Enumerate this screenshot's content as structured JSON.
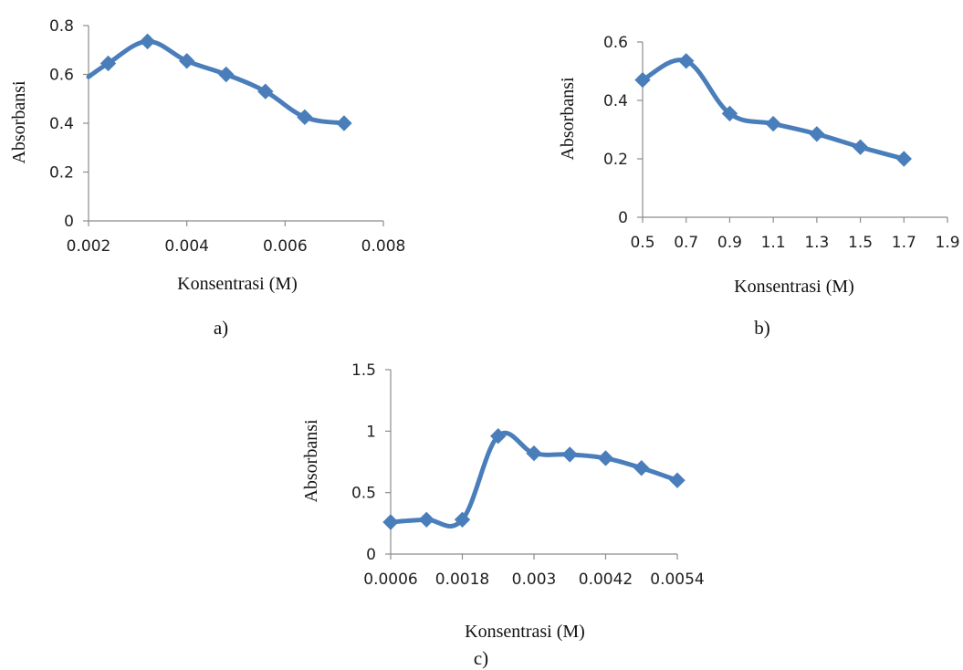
{
  "colors": {
    "series": "#4a7ebb",
    "axis": "#8c8c8c"
  },
  "chart_data": [
    {
      "type": "line",
      "panel_label": "a)",
      "xlabel": "Konsentrasi (M)",
      "ylabel": "Absorbansi",
      "xlim": [
        0.002,
        0.008
      ],
      "ylim": [
        0,
        0.8
      ],
      "x_ticks": [
        "0.002",
        "0.004",
        "0.006",
        "0.008"
      ],
      "y_ticks": [
        "0",
        "0.2",
        "0.4",
        "0.6",
        "0.8"
      ],
      "x_tick_values": [
        0.002,
        0.004,
        0.006,
        0.008
      ],
      "y_tick_values": [
        0,
        0.2,
        0.4,
        0.6,
        0.8
      ],
      "x": [
        0.0024,
        0.0032,
        0.004,
        0.0048,
        0.0056,
        0.0064,
        0.0072
      ],
      "values": [
        0.645,
        0.735,
        0.655,
        0.6,
        0.53,
        0.425,
        0.4
      ],
      "line_start": [
        0.002,
        0.59
      ],
      "grid": false
    },
    {
      "type": "line",
      "panel_label": "b)",
      "xlabel": "Konsentrasi (M)",
      "ylabel": "Absorbansi",
      "xlim": [
        0.5,
        1.9
      ],
      "ylim": [
        0,
        0.6
      ],
      "x_ticks": [
        "0.5",
        "0.7",
        "0.9",
        "1.1",
        "1.3",
        "1.5",
        "1.7",
        "1.9"
      ],
      "y_ticks": [
        "0",
        "0.2",
        "0.4",
        "0.6"
      ],
      "x_tick_values": [
        0.5,
        0.7,
        0.9,
        1.1,
        1.3,
        1.5,
        1.7,
        1.9
      ],
      "y_tick_values": [
        0,
        0.2,
        0.4,
        0.6
      ],
      "x": [
        0.5,
        0.7,
        0.9,
        1.1,
        1.3,
        1.5,
        1.7
      ],
      "values": [
        0.47,
        0.535,
        0.355,
        0.32,
        0.285,
        0.24,
        0.2
      ],
      "grid": false
    },
    {
      "type": "line",
      "panel_label": "c)",
      "xlabel": "Konsentrasi (M)",
      "ylabel": "Absorbansi",
      "xlim": [
        0.0006,
        0.0054
      ],
      "ylim": [
        0,
        1.5
      ],
      "x_ticks": [
        "0.0006",
        "0.0018",
        "0.003",
        "0.0042",
        "0.0054"
      ],
      "y_ticks": [
        "0",
        "0.5",
        "1",
        "1.5"
      ],
      "x_tick_values": [
        0.0006,
        0.0018,
        0.003,
        0.0042,
        0.0054
      ],
      "y_tick_values": [
        0,
        0.5,
        1,
        1.5
      ],
      "x": [
        0.0006,
        0.0012,
        0.0018,
        0.0024,
        0.003,
        0.0036,
        0.0042,
        0.0048,
        0.0054
      ],
      "values": [
        0.26,
        0.28,
        0.28,
        0.96,
        0.82,
        0.81,
        0.78,
        0.7,
        0.6
      ],
      "grid": false
    }
  ]
}
